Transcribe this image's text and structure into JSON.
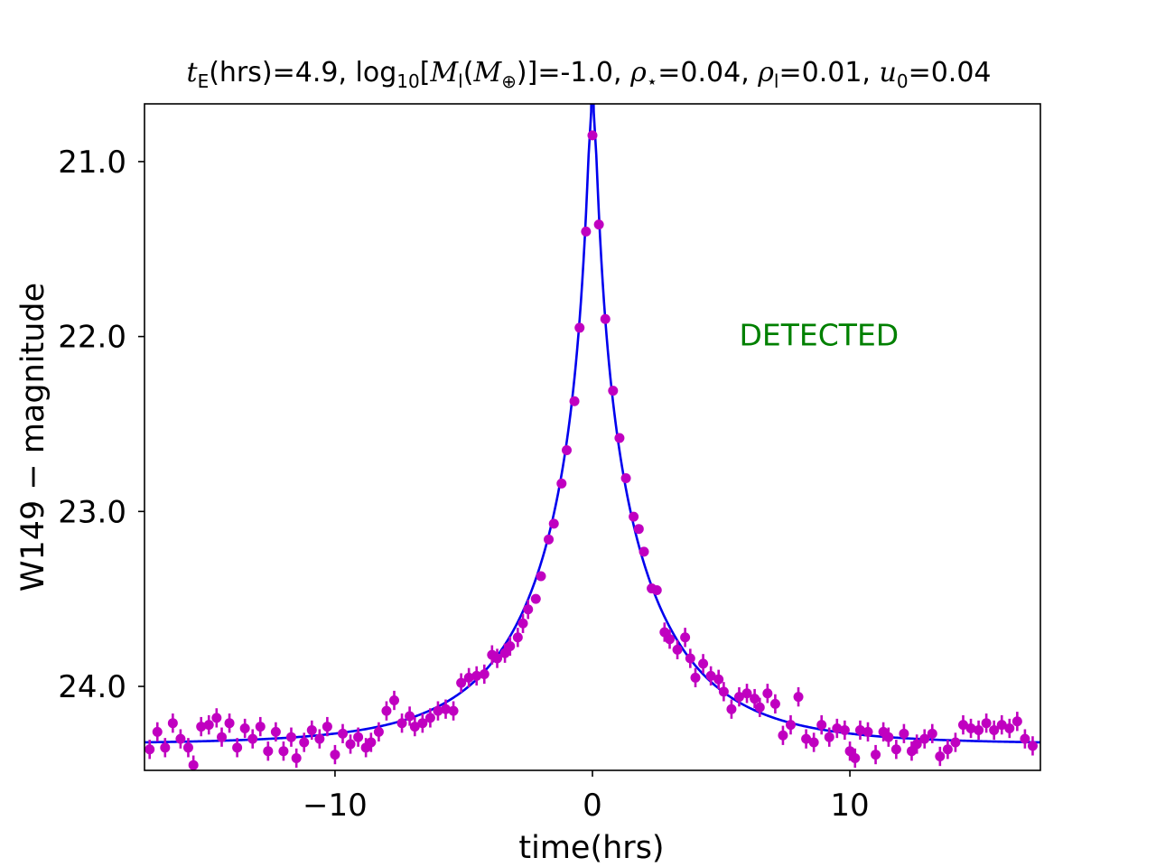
{
  "chart_data": {
    "type": "scatter",
    "title": "tE(hrs)=4.9,  log10[Ml(M⊕)]=-1.0,  ρ⋆=0.04,  ρl=0.01,  u0=0.04",
    "title_parts": {
      "tE_value": "4.9",
      "log_mass_value": "-1.0",
      "rho_star_value": "0.04",
      "rho_lens_value": "0.01",
      "u0_value": "0.04"
    },
    "xlabel": "time(hrs)",
    "ylabel": "W149 − magnitude",
    "xlim": [
      -17.4,
      17.4
    ],
    "ylim": [
      24.48,
      20.67
    ],
    "y_inverted": true,
    "x_ticks": [
      -10,
      0,
      10
    ],
    "x_tick_labels": [
      "−10",
      "0",
      "10"
    ],
    "y_ticks": [
      21.0,
      22.0,
      23.0,
      24.0
    ],
    "y_tick_labels": [
      "21.0",
      "22.0",
      "23.0",
      "24.0"
    ],
    "annotation": {
      "text": "DETECTED",
      "x": 8.8,
      "y": 21.99,
      "color": "#008000"
    },
    "model": {
      "name": "model fit",
      "color": "#0000ee",
      "baseline_mag": 24.33,
      "t0": 0.0,
      "tE": 4.9,
      "u0": 0.04,
      "rho_star": 0.04
    },
    "series": [
      {
        "name": "data",
        "color": "#c000c0",
        "points": [
          [
            -17.2,
            24.36
          ],
          [
            -16.9,
            24.26
          ],
          [
            -16.6,
            24.35
          ],
          [
            -16.3,
            24.21
          ],
          [
            -16.0,
            24.3
          ],
          [
            -15.7,
            24.35
          ],
          [
            -15.5,
            24.45
          ],
          [
            -15.2,
            24.23
          ],
          [
            -14.9,
            24.22
          ],
          [
            -14.6,
            24.18
          ],
          [
            -14.4,
            24.29
          ],
          [
            -14.1,
            24.21
          ],
          [
            -13.8,
            24.35
          ],
          [
            -13.5,
            24.24
          ],
          [
            -13.2,
            24.3
          ],
          [
            -12.9,
            24.23
          ],
          [
            -12.6,
            24.37
          ],
          [
            -12.3,
            24.26
          ],
          [
            -12.0,
            24.37
          ],
          [
            -11.7,
            24.29
          ],
          [
            -11.5,
            24.41
          ],
          [
            -11.2,
            24.32
          ],
          [
            -10.9,
            24.25
          ],
          [
            -10.6,
            24.3
          ],
          [
            -10.3,
            24.23
          ],
          [
            -10.0,
            24.39
          ],
          [
            -9.7,
            24.27
          ],
          [
            -9.4,
            24.33
          ],
          [
            -9.1,
            24.29
          ],
          [
            -8.8,
            24.35
          ],
          [
            -8.6,
            24.32
          ],
          [
            -8.3,
            24.26
          ],
          [
            -8.0,
            24.14
          ],
          [
            -7.7,
            24.08
          ],
          [
            -7.4,
            24.21
          ],
          [
            -7.1,
            24.17
          ],
          [
            -6.9,
            24.23
          ],
          [
            -6.6,
            24.21
          ],
          [
            -6.3,
            24.18
          ],
          [
            -6.0,
            24.14
          ],
          [
            -5.7,
            24.13
          ],
          [
            -5.4,
            24.14
          ],
          [
            -5.1,
            23.98
          ],
          [
            -4.8,
            23.95
          ],
          [
            -4.5,
            23.94
          ],
          [
            -4.2,
            23.93
          ],
          [
            -3.9,
            23.82
          ],
          [
            -3.7,
            23.84
          ],
          [
            -3.4,
            23.81
          ],
          [
            -3.2,
            23.77
          ],
          [
            -2.9,
            23.72
          ],
          [
            -2.7,
            23.64
          ],
          [
            -2.5,
            23.56
          ],
          [
            -2.2,
            23.5
          ],
          [
            -2.0,
            23.37
          ],
          [
            -1.7,
            23.16
          ],
          [
            -1.5,
            23.07
          ],
          [
            -1.2,
            22.84
          ],
          [
            -1.0,
            22.65
          ],
          [
            -0.7,
            22.37
          ],
          [
            -0.5,
            21.95
          ],
          [
            -0.25,
            21.4
          ],
          [
            0.0,
            20.85
          ],
          [
            0.25,
            21.36
          ],
          [
            0.5,
            21.9
          ],
          [
            0.8,
            22.31
          ],
          [
            1.05,
            22.58
          ],
          [
            1.3,
            22.81
          ],
          [
            1.6,
            23.03
          ],
          [
            1.8,
            23.1
          ],
          [
            2.0,
            23.23
          ],
          [
            2.3,
            23.44
          ],
          [
            2.5,
            23.45
          ],
          [
            2.8,
            23.69
          ],
          [
            3.0,
            23.73
          ],
          [
            3.3,
            23.79
          ],
          [
            3.6,
            23.72
          ],
          [
            3.8,
            23.84
          ],
          [
            4.0,
            23.95
          ],
          [
            4.3,
            23.87
          ],
          [
            4.6,
            23.94
          ],
          [
            4.9,
            23.96
          ],
          [
            5.1,
            24.03
          ],
          [
            5.4,
            24.13
          ],
          [
            5.7,
            24.06
          ],
          [
            6.0,
            24.04
          ],
          [
            6.3,
            24.07
          ],
          [
            6.5,
            24.12
          ],
          [
            6.8,
            24.04
          ],
          [
            7.1,
            24.1
          ],
          [
            7.4,
            24.28
          ],
          [
            7.7,
            24.22
          ],
          [
            8.0,
            24.06
          ],
          [
            8.3,
            24.3
          ],
          [
            8.6,
            24.32
          ],
          [
            8.9,
            24.22
          ],
          [
            9.2,
            24.29
          ],
          [
            9.5,
            24.24
          ],
          [
            9.8,
            24.25
          ],
          [
            10.0,
            24.37
          ],
          [
            10.2,
            24.41
          ],
          [
            10.4,
            24.25
          ],
          [
            10.7,
            24.26
          ],
          [
            11.0,
            24.39
          ],
          [
            11.3,
            24.26
          ],
          [
            11.5,
            24.29
          ],
          [
            11.8,
            24.36
          ],
          [
            12.1,
            24.27
          ],
          [
            12.4,
            24.37
          ],
          [
            12.6,
            24.33
          ],
          [
            12.9,
            24.3
          ],
          [
            13.2,
            24.27
          ],
          [
            13.5,
            24.4
          ],
          [
            13.8,
            24.36
          ],
          [
            14.1,
            24.32
          ],
          [
            14.4,
            24.22
          ],
          [
            14.7,
            24.24
          ],
          [
            15.0,
            24.25
          ],
          [
            15.3,
            24.21
          ],
          [
            15.6,
            24.25
          ],
          [
            15.9,
            24.22
          ],
          [
            16.2,
            24.24
          ],
          [
            16.5,
            24.2
          ],
          [
            16.8,
            24.3
          ],
          [
            17.1,
            24.34
          ]
        ]
      }
    ]
  }
}
